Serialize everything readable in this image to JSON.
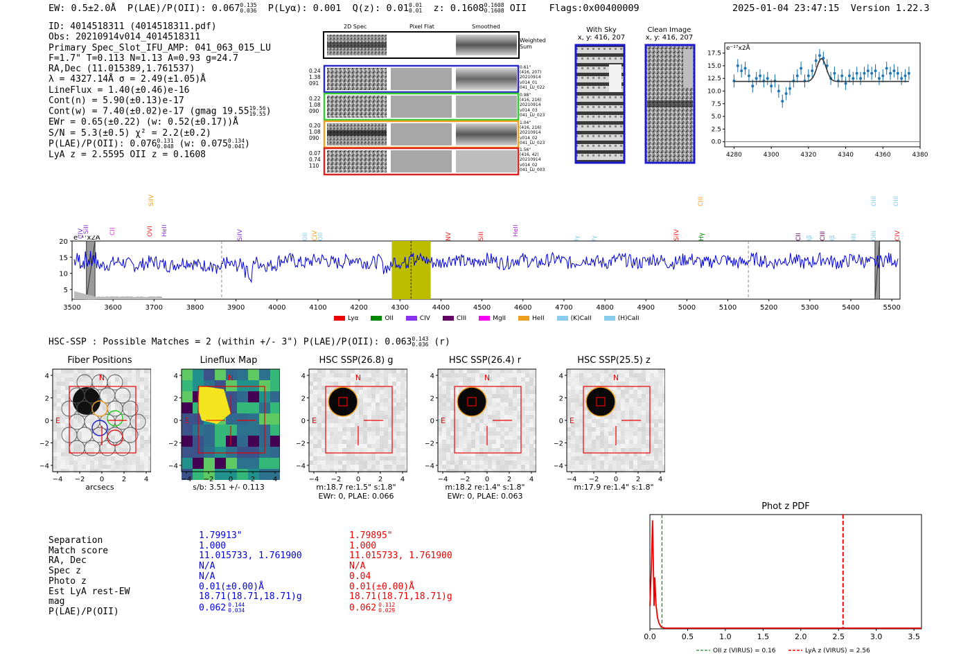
{
  "header": {
    "ew": "EW: 0.5±2.0Å",
    "plae": "P(LAE)/P(OII): 0.067",
    "plae_sup": "0.135",
    "plae_sub": "0.036",
    "plya": "P(Lyα): 0.001",
    "qz": "Q(z): 0.01",
    "qz_sup": "0.01",
    "qz_sub": "0.01",
    "z": "z: 0.1608",
    "z_sup": "0.1608",
    "z_sub": "0.1608",
    "z_line": "OII",
    "flags": "Flags:0x00400009",
    "timestamp": "2025-01-04 23:47:15",
    "version": "Version 1.22.3"
  },
  "info": {
    "id": "ID: 4014518311 (4014518311.pdf)",
    "obs": "Obs: 20210914v014_4014518311",
    "primary": "Primary Spec_Slot_IFU_AMP: 041_063_015_LU",
    "fparams": "F=1.7\"  T=0.113  N=1.13  A=0.93  g=24.7",
    "radec": "RA,Dec (11.015389,1.761537)",
    "lambda": "λ = 4327.14Å   σ = 2.49(±1.05)Å",
    "lineflux": "LineFlux = 1.40(±0.46)e-16",
    "contn": "Cont(n) = 5.90(±0.13)e-17",
    "contw": "Cont(w) = 7.40(±0.02)e-17 (gmag 19.55",
    "contw_sup": "19.56",
    "contw_sub": "19.55",
    "ewr": "EWr = 0.65(±0.22) (w: 0.52(±0.17))Å",
    "sn": "S/N = 5.3(±0.5)  χ² = 2.2(±0.2)",
    "plae": "P(LAE)/P(OII): 0.076",
    "plae_sup": "0.131",
    "plae_sub": "0.048",
    "plae_w": "(w: 0.075",
    "plae_w_sup": "0.134",
    "plae_w_sub": "0.041",
    "lyaz": "LyA z = 2.5595   OII z = 0.1608"
  },
  "cutouts": {
    "col_titles": [
      "2D Spec",
      "Pixel Flat",
      "Smoothed"
    ],
    "weighted_label": "Weighted Sum",
    "rows": [
      {
        "left": [
          "0.24",
          "1.38",
          "091"
        ],
        "right": [
          "0.61\"",
          "(416, 207)",
          "20210914",
          "v014_01",
          "041_LU_022"
        ],
        "color": "#2a2acc"
      },
      {
        "left": [
          "0.22",
          "1.08",
          "090"
        ],
        "right": [
          "0.98\"",
          "(416, 216)",
          "20210914",
          "v014_03",
          "041_LU_023"
        ],
        "color": "#33cc33"
      },
      {
        "left": [
          "0.20",
          "1.08",
          "090"
        ],
        "right": [
          "1.04\"",
          "(416, 216)",
          "20210914",
          "v014_02",
          "041_LU_023"
        ],
        "color": "#f0a020"
      },
      {
        "left": [
          "0.07",
          "0.74",
          "110"
        ],
        "right": [
          "1.56\"",
          "(416, 42)",
          "20210914",
          "v014_02",
          "041_LU_003"
        ],
        "color": "#dd2222"
      }
    ],
    "with_sky_title": "With Sky",
    "with_sky_coords": "x, y: 416, 207",
    "clean_title": "Clean Image",
    "clean_coords": "x, y: 416, 207"
  },
  "zoom_plot": {
    "ylabel": "e⁻¹⁷x2Å",
    "x_ticks": [
      "4280",
      "4300",
      "4320",
      "4340",
      "4360",
      "4380"
    ],
    "y_ticks": [
      "0.0",
      "2.5",
      "5.0",
      "7.5",
      "10.0",
      "12.5",
      "15.0",
      "17.5"
    ]
  },
  "spectrum": {
    "ylabel": "e⁻¹⁷x2Å",
    "x_ticks": [
      "3500",
      "3600",
      "3700",
      "3800",
      "3900",
      "4000",
      "4100",
      "4200",
      "4300",
      "4400",
      "4500",
      "4600",
      "4700",
      "4800",
      "4900",
      "5000",
      "5100",
      "5200",
      "5300",
      "5400",
      "5500"
    ],
    "y_ticks": [
      "5",
      "10",
      "15",
      "20"
    ],
    "line_labels": [
      {
        "text": "CIV",
        "color": "#8833cc"
      },
      {
        "text": "SiII",
        "color": "#8833cc"
      },
      {
        "text": "CII",
        "color": "#cc33cc"
      },
      {
        "text": "SiIV",
        "color": "#f0a020"
      },
      {
        "text": "OVI",
        "color": "#ee2222"
      },
      {
        "text": "HeII",
        "color": "#8833cc"
      },
      {
        "text": "SiIV",
        "color": "#8833cc"
      },
      {
        "text": "OII",
        "color": "#88ccee"
      },
      {
        "text": "CIV",
        "color": "#f0a020"
      },
      {
        "text": "OII",
        "color": "#88ccee"
      },
      {
        "text": "NV",
        "color": "#ee2222"
      },
      {
        "text": "SiII",
        "color": "#ee2222"
      },
      {
        "text": "HeII",
        "color": "#aa33cc"
      },
      {
        "text": "Hγ",
        "color": "#88ccee"
      },
      {
        "text": "Hγ",
        "color": "#88ccee"
      },
      {
        "text": "SiIV",
        "color": "#ee2222"
      },
      {
        "text": "CIII",
        "color": "#f0a020"
      },
      {
        "text": "Hγ",
        "color": "#008800"
      },
      {
        "text": "CII",
        "color": "#660066"
      },
      {
        "text": "Hβ",
        "color": "#88ccee"
      },
      {
        "text": "CIII",
        "color": "#660066"
      },
      {
        "text": "Hβ",
        "color": "#88ccee"
      },
      {
        "text": "OIII",
        "color": "#88ccee"
      },
      {
        "text": "OIII",
        "color": "#88ccee"
      },
      {
        "text": "OIII",
        "color": "#88ccee"
      },
      {
        "text": "OIII",
        "color": "#88ccee"
      },
      {
        "text": "CIV",
        "color": "#ee2222"
      }
    ],
    "legend": [
      {
        "label": "Lyα",
        "color": "#ee0000"
      },
      {
        "label": "OII",
        "color": "#008800"
      },
      {
        "label": "CIV",
        "color": "#8833ee"
      },
      {
        "label": "CIII",
        "color": "#660066"
      },
      {
        "label": "MgII",
        "color": "#ff00ff"
      },
      {
        "label": "HeII",
        "color": "#f0a020"
      },
      {
        "label": "(K)CaII",
        "color": "#88ccee"
      },
      {
        "label": "(H)CaII",
        "color": "#88ccee"
      }
    ]
  },
  "hsc_header": {
    "text": "HSC-SSP : Possible Matches = 2 (within +/- 3\")  P(LAE)/P(OII): 0.063",
    "sup": "0.143",
    "sub": "0.036",
    "band": "(r)"
  },
  "image_panels": [
    {
      "title": "Fiber Positions",
      "caption1": "arcsecs",
      "caption2": ""
    },
    {
      "title": "Lineflux Map",
      "caption1": "s/b: 3.51 +/- 0.113",
      "caption2": ""
    },
    {
      "title": "HSC SSP(26.8) g",
      "caption1": "m:18.7  re:1.5\"  s:1.8\"",
      "caption2": "EWr: 0, PLAE: 0.066"
    },
    {
      "title": "HSC SSP(26.4) r",
      "caption1": "m:18.2  re:1.4\"  s:1.8\"",
      "caption2": "EWr: 0, PLAE: 0.063"
    },
    {
      "title": "HSC SSP(25.5) z",
      "caption1": "m:17.9  re:1.4\"  s:1.8\"",
      "caption2": ""
    }
  ],
  "image_axis": {
    "ticks": [
      "−4",
      "−2",
      "0",
      "2",
      "4"
    ],
    "yticks": [
      "4",
      "2",
      "0",
      "−2",
      "−4"
    ],
    "n_label": "N",
    "e_label": "E"
  },
  "match_table": {
    "labels": [
      "Separation",
      "Match score",
      "RA, Dec",
      "Spec z",
      "Photo z",
      "Est LyA rest-EW",
      "mag",
      "P(LAE)/P(OII)"
    ],
    "col1": [
      "1.79913\"",
      "1.000",
      "11.015733, 1.761900",
      "N/A",
      "N/A",
      "0.01(±0.00)Å",
      "18.71(18.71,18.71)g",
      "0.062"
    ],
    "col1_plae_sup": "0.144",
    "col1_plae_sub": "0.034",
    "col2": [
      "1.79895\"",
      "1.000",
      "11.015733, 1.761900",
      "N/A",
      "0.04",
      "0.01(±0.00)Å",
      "18.71(18.71,18.71)g",
      "0.062"
    ],
    "col2_plae_sup": "0.112",
    "col2_plae_sub": "0.029"
  },
  "photz": {
    "title": "Phot z PDF",
    "x_ticks": [
      "0.0",
      "0.5",
      "1.0",
      "1.5",
      "2.0",
      "2.5",
      "3.0",
      "3.5"
    ],
    "legend_oii": "OII z (VIRUS) = 0.16",
    "legend_lya": "LyA z (VIRUS) = 2.56"
  },
  "chart_data": [
    {
      "type": "scatter",
      "title": "",
      "xlabel": "",
      "ylabel": "e⁻¹⁷x2Å",
      "xlim": [
        4275,
        4380
      ],
      "ylim": [
        -1,
        19.5
      ],
      "x": [
        4280,
        4282,
        4284,
        4286,
        4288,
        4290,
        4292,
        4294,
        4296,
        4298,
        4300,
        4302,
        4304,
        4306,
        4308,
        4310,
        4312,
        4314,
        4316,
        4318,
        4320,
        4322,
        4324,
        4326,
        4328,
        4330,
        4332,
        4334,
        4336,
        4338,
        4340,
        4342,
        4344,
        4346,
        4348,
        4350,
        4352,
        4354,
        4356,
        4358,
        4360,
        4362,
        4364,
        4366,
        4368,
        4370,
        4372,
        4374
      ],
      "y": [
        12.0,
        15.0,
        14.0,
        14.5,
        13.0,
        11.0,
        12.5,
        13.0,
        12.0,
        12.5,
        11.0,
        12.0,
        10.0,
        8.0,
        9.5,
        10.5,
        12.0,
        13.0,
        14.5,
        12.0,
        13.0,
        14.0,
        16.0,
        17.0,
        16.5,
        15.0,
        12.5,
        13.5,
        12.0,
        13.0,
        11.5,
        13.0,
        12.5,
        13.5,
        12.5,
        13.5,
        14.0,
        13.5,
        14.0,
        12.5,
        13.0,
        14.5,
        13.5,
        14.0,
        13.5,
        12.5,
        13.0,
        13.5
      ],
      "fit": {
        "baseline": 11.9,
        "peak_x": 4327,
        "amplitude": 4.5,
        "sigma": 2.5
      }
    },
    {
      "type": "line",
      "title": "",
      "xlabel": "",
      "ylabel": "e⁻¹⁷x2Å",
      "xlim": [
        3500,
        5520
      ],
      "ylim": [
        2,
        20
      ],
      "highlight_band": [
        4280,
        4375
      ],
      "emission_line_x": 4327,
      "dashed_lines": [
        3865,
        5150
      ],
      "masked_bands": [
        [
          3535,
          3556
        ],
        [
          5459,
          5470
        ]
      ]
    },
    {
      "type": "line",
      "title": "Phot z PDF",
      "xlabel": "",
      "ylabel": "",
      "xlim": [
        0,
        3.6
      ],
      "ylim": [
        0,
        1
      ],
      "x": [
        0.0,
        0.02,
        0.035,
        0.045,
        0.055,
        0.065,
        0.08,
        0.1,
        0.12,
        0.15,
        0.2,
        0.3,
        1.0,
        2.0,
        3.0,
        3.6
      ],
      "y": [
        0.2,
        0.55,
        0.95,
        0.6,
        0.2,
        0.45,
        0.22,
        0.1,
        0.05,
        0.015,
        0.006,
        0.006,
        0.006,
        0.006,
        0.006,
        0.006
      ],
      "vlines": [
        {
          "x": 0.16,
          "label": "OII z (VIRUS) = 0.16",
          "color": "#228822"
        },
        {
          "x": 2.56,
          "label": "LyA z (VIRUS) = 2.56",
          "color": "#ee0000"
        }
      ]
    }
  ]
}
